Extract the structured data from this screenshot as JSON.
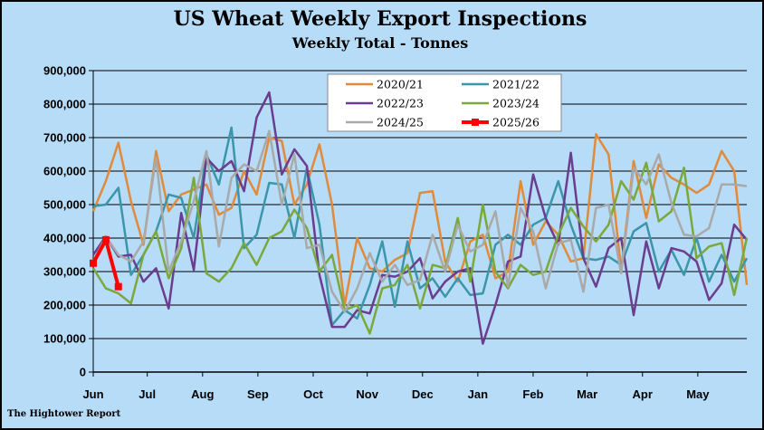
{
  "title": "US Wheat Weekly Export Inspections",
  "subtitle": "Weekly Total - Tonnes",
  "footer": "The Hightower Report",
  "chart_data": {
    "type": "line",
    "title": "US Wheat Weekly Export Inspections",
    "subtitle": "Weekly Total - Tonnes",
    "xlabel": "",
    "ylabel": "",
    "ylim": [
      0,
      900000
    ],
    "yticks": [
      0,
      100000,
      200000,
      300000,
      400000,
      500000,
      600000,
      700000,
      800000,
      900000
    ],
    "ytick_labels": [
      "0",
      "100,000",
      "200,000",
      "300,000",
      "400,000",
      "500,000",
      "600,000",
      "700,000",
      "800,000",
      "900,000"
    ],
    "xlim": [
      0,
      52
    ],
    "x_tick_labels": [
      "Jun",
      "Jul",
      "Aug",
      "Sep",
      "Oct",
      "Nov",
      "Dec",
      "Jan",
      "Feb",
      "Mar",
      "Apr",
      "May"
    ],
    "x_tick_positions": [
      0,
      4.3,
      8.7,
      13.1,
      17.5,
      21.8,
      26.2,
      30.6,
      35.0,
      39.3,
      43.7,
      48.1
    ],
    "grid": "horizontal",
    "legend": "top-right",
    "series": [
      {
        "name": "2020/21",
        "color": "#e08a3c",
        "values": [
          480000,
          570000,
          685000,
          510000,
          380000,
          660000,
          480000,
          530000,
          545000,
          560000,
          470000,
          490000,
          600000,
          530000,
          700000,
          690000,
          500000,
          560000,
          680000,
          500000,
          200000,
          400000,
          310000,
          300000,
          335000,
          355000,
          535000,
          540000,
          330000,
          270000,
          390000,
          410000,
          280000,
          300000,
          570000,
          380000,
          450000,
          410000,
          330000,
          340000,
          710000,
          650000,
          305000,
          630000,
          460000,
          620000,
          580000,
          560000,
          535000,
          560000,
          660000,
          600000,
          260000
        ]
      },
      {
        "name": "2021/22",
        "color": "#3a96a8",
        "values": [
          495000,
          500000,
          550000,
          290000,
          350000,
          420000,
          530000,
          520000,
          400000,
          650000,
          560000,
          730000,
          370000,
          410000,
          565000,
          560000,
          400000,
          610000,
          440000,
          140000,
          185000,
          160000,
          260000,
          390000,
          195000,
          390000,
          250000,
          280000,
          225000,
          280000,
          230000,
          235000,
          380000,
          410000,
          380000,
          440000,
          460000,
          570000,
          440000,
          340000,
          335000,
          345000,
          320000,
          420000,
          445000,
          300000,
          365000,
          290000,
          400000,
          270000,
          350000,
          270000,
          340000
        ]
      },
      {
        "name": "2022/23",
        "color": "#6a3d8f",
        "values": [
          350000,
          405000,
          345000,
          350000,
          270000,
          310000,
          190000,
          475000,
          305000,
          640000,
          600000,
          630000,
          540000,
          760000,
          835000,
          590000,
          665000,
          615000,
          290000,
          135000,
          135000,
          185000,
          175000,
          290000,
          285000,
          300000,
          340000,
          220000,
          270000,
          300000,
          310000,
          85000,
          200000,
          330000,
          345000,
          590000,
          460000,
          380000,
          655000,
          340000,
          255000,
          370000,
          400000,
          170000,
          390000,
          250000,
          370000,
          360000,
          330000,
          215000,
          265000,
          440000,
          395000
        ]
      },
      {
        "name": "2023/24",
        "color": "#7aa83c",
        "values": [
          310000,
          250000,
          235000,
          205000,
          350000,
          420000,
          280000,
          370000,
          580000,
          295000,
          270000,
          310000,
          385000,
          320000,
          400000,
          420000,
          485000,
          430000,
          300000,
          350000,
          185000,
          200000,
          115000,
          250000,
          260000,
          320000,
          190000,
          320000,
          310000,
          460000,
          270000,
          500000,
          300000,
          250000,
          320000,
          290000,
          300000,
          410000,
          490000,
          435000,
          390000,
          440000,
          570000,
          515000,
          625000,
          450000,
          480000,
          610000,
          340000,
          375000,
          385000,
          230000,
          400000
        ]
      },
      {
        "name": "2024/25",
        "color": "#a9a9a9",
        "values": [
          330000,
          405000,
          350000,
          330000,
          390000,
          640000,
          300000,
          390000,
          510000,
          660000,
          375000,
          580000,
          620000,
          600000,
          720000,
          500000,
          650000,
          370000,
          380000,
          240000,
          180000,
          250000,
          355000,
          270000,
          320000,
          260000,
          275000,
          410000,
          300000,
          440000,
          360000,
          380000,
          480000,
          255000,
          490000,
          420000,
          250000,
          385000,
          395000,
          240000,
          490000,
          500000,
          295000,
          610000,
          560000,
          650000,
          505000,
          410000,
          405000,
          430000,
          560000,
          560000,
          555000
        ]
      },
      {
        "name": "2025/26",
        "color": "#ff0000",
        "bold": true,
        "values": [
          325000,
          395000,
          255000
        ]
      }
    ]
  }
}
